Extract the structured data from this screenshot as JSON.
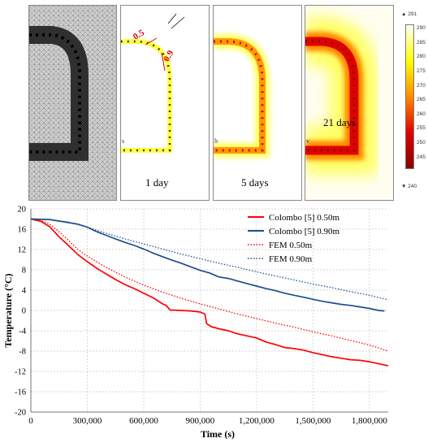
{
  "panels": {
    "day1": "1 day",
    "day5": "5 days",
    "day21": "21 days",
    "dim_a": "0.5",
    "dim_b": "0.9",
    "stub_left": "s",
    "stub_mid": "h",
    "stub_right": "v"
  },
  "colorbar": {
    "max_label": "▲ 291",
    "min_label": "▼ 240",
    "ticks": [
      "290",
      "285",
      "280",
      "275",
      "270",
      "265",
      "260",
      "255",
      "250",
      "245"
    ],
    "colors": [
      "#fffff5",
      "#ffff00",
      "#ff8a00",
      "#e00000",
      "#8b0000"
    ]
  },
  "chart_data": {
    "type": "line",
    "xlabel": "Time (s)",
    "ylabel": "Temperature (°C)",
    "xlim": [
      0,
      1900000
    ],
    "ylim": [
      -20,
      20
    ],
    "x_ticks": [
      "0",
      "300,000",
      "600,000",
      "900,000",
      "1,200,000",
      "1,500,000",
      "1,800,000"
    ],
    "y_ticks": [
      "20",
      "16",
      "12",
      "8",
      "4",
      "0",
      "-4",
      "-8",
      "-12",
      "-16",
      "-20"
    ],
    "grid": true,
    "legend_position": "top-right",
    "series": [
      {
        "name": "Colombo [5] 0.50m",
        "color": "#ff0000",
        "style": "solid",
        "points": [
          [
            0,
            18
          ],
          [
            50000,
            17.6
          ],
          [
            100000,
            16.5
          ],
          [
            150000,
            14.5
          ],
          [
            200000,
            12.8
          ],
          [
            250000,
            11
          ],
          [
            300000,
            9.6
          ],
          [
            350000,
            8.3
          ],
          [
            400000,
            7.2
          ],
          [
            450000,
            6.1
          ],
          [
            500000,
            5.1
          ],
          [
            550000,
            4.3
          ],
          [
            600000,
            3.4
          ],
          [
            650000,
            2.5
          ],
          [
            700000,
            1.3
          ],
          [
            720000,
            1.0
          ],
          [
            740000,
            0.1
          ],
          [
            800000,
            0.0
          ],
          [
            850000,
            -0.1
          ],
          [
            900000,
            -0.3
          ],
          [
            925000,
            -0.7
          ],
          [
            935000,
            -2.6
          ],
          [
            960000,
            -3.2
          ],
          [
            1000000,
            -3.6
          ],
          [
            1050000,
            -4.0
          ],
          [
            1100000,
            -4.6
          ],
          [
            1150000,
            -5.0
          ],
          [
            1200000,
            -5.4
          ],
          [
            1250000,
            -6.2
          ],
          [
            1300000,
            -6.7
          ],
          [
            1350000,
            -7.3
          ],
          [
            1400000,
            -7.5
          ],
          [
            1450000,
            -7.8
          ],
          [
            1500000,
            -8.3
          ],
          [
            1550000,
            -8.7
          ],
          [
            1600000,
            -9.1
          ],
          [
            1650000,
            -9.4
          ],
          [
            1700000,
            -9.7
          ],
          [
            1750000,
            -9.8
          ],
          [
            1800000,
            -10.1
          ],
          [
            1850000,
            -10.5
          ],
          [
            1900000,
            -10.9
          ]
        ]
      },
      {
        "name": "Colombo [5] 0.90m",
        "color": "#1f4e8c",
        "style": "solid",
        "points": [
          [
            0,
            18
          ],
          [
            100000,
            17.9
          ],
          [
            150000,
            17.6
          ],
          [
            200000,
            17.3
          ],
          [
            250000,
            17.0
          ],
          [
            300000,
            16.4
          ],
          [
            350000,
            15.5
          ],
          [
            400000,
            14.8
          ],
          [
            450000,
            14.1
          ],
          [
            500000,
            13.4
          ],
          [
            550000,
            12.8
          ],
          [
            600000,
            12.1
          ],
          [
            650000,
            11.3
          ],
          [
            700000,
            10.6
          ],
          [
            750000,
            9.9
          ],
          [
            800000,
            9.3
          ],
          [
            850000,
            8.6
          ],
          [
            900000,
            7.9
          ],
          [
            950000,
            7.4
          ],
          [
            1000000,
            6.6
          ],
          [
            1050000,
            6.3
          ],
          [
            1100000,
            5.8
          ],
          [
            1150000,
            5.3
          ],
          [
            1200000,
            4.8
          ],
          [
            1250000,
            4.3
          ],
          [
            1300000,
            3.9
          ],
          [
            1350000,
            3.4
          ],
          [
            1400000,
            3.0
          ],
          [
            1450000,
            2.6
          ],
          [
            1500000,
            2.2
          ],
          [
            1550000,
            1.8
          ],
          [
            1600000,
            1.5
          ],
          [
            1650000,
            1.2
          ],
          [
            1700000,
            1.0
          ],
          [
            1750000,
            0.7
          ],
          [
            1800000,
            0.4
          ],
          [
            1850000,
            0.0
          ],
          [
            1880000,
            -0.1
          ]
        ]
      },
      {
        "name": "FEM 0.50m",
        "color": "#ff0000",
        "style": "dotted",
        "points": [
          [
            0,
            18
          ],
          [
            50000,
            17.8
          ],
          [
            100000,
            17.0
          ],
          [
            150000,
            15.5
          ],
          [
            200000,
            13.8
          ],
          [
            250000,
            12.0
          ],
          [
            300000,
            10.7
          ],
          [
            400000,
            8.5
          ],
          [
            500000,
            6.6
          ],
          [
            600000,
            5.0
          ],
          [
            700000,
            3.6
          ],
          [
            800000,
            2.4
          ],
          [
            900000,
            1.3
          ],
          [
            1000000,
            0.3
          ],
          [
            1100000,
            -0.7
          ],
          [
            1200000,
            -1.6
          ],
          [
            1300000,
            -2.5
          ],
          [
            1400000,
            -3.3
          ],
          [
            1500000,
            -4.2
          ],
          [
            1600000,
            -5.0
          ],
          [
            1700000,
            -5.9
          ],
          [
            1800000,
            -6.8
          ],
          [
            1900000,
            -8.0
          ]
        ]
      },
      {
        "name": "FEM 0.90m",
        "color": "#1f4e8c",
        "style": "dotted",
        "points": [
          [
            0,
            18
          ],
          [
            100000,
            17.9
          ],
          [
            200000,
            17.4
          ],
          [
            300000,
            16.4
          ],
          [
            400000,
            15.2
          ],
          [
            500000,
            14.1
          ],
          [
            600000,
            13.1
          ],
          [
            700000,
            12.1
          ],
          [
            800000,
            11.1
          ],
          [
            900000,
            10.2
          ],
          [
            1000000,
            9.3
          ],
          [
            1100000,
            8.5
          ],
          [
            1200000,
            7.6
          ],
          [
            1300000,
            6.8
          ],
          [
            1400000,
            6.0
          ],
          [
            1500000,
            5.2
          ],
          [
            1600000,
            4.5
          ],
          [
            1700000,
            3.7
          ],
          [
            1800000,
            3.0
          ],
          [
            1900000,
            2.1
          ]
        ]
      }
    ]
  }
}
